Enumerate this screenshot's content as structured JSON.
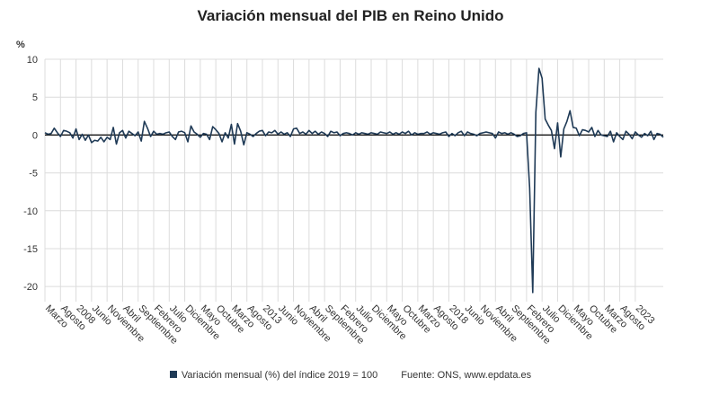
{
  "header": {
    "title": "Variación mensual del PIB en Reino Unido",
    "unit": "%"
  },
  "legend": {
    "label": "Variación mensual (%) del índice 2019 = 100",
    "source": "Fuente: ONS, www.epdata.es"
  },
  "colors": {
    "line": "#1f3a56",
    "grid": "#dcdcdc",
    "zero": "#000000",
    "axis_text": "#333333"
  },
  "chart_data": {
    "type": "line",
    "title": "Variación mensual del PIB en Reino Unido",
    "ylabel": "%",
    "ylim": [
      -22,
      10
    ],
    "yticks": [
      10,
      5,
      0,
      -5,
      -10,
      -15,
      -20
    ],
    "grid": true,
    "legend_position": "bottom",
    "x_start": "2007-03",
    "x_end": "2023-10",
    "tick_labels": [
      {
        "date": "2007-03",
        "label": "Marzo"
      },
      {
        "date": "2007-08",
        "label": "Agosto"
      },
      {
        "date": "2008-01",
        "label": "2008"
      },
      {
        "date": "2008-06",
        "label": "Junio"
      },
      {
        "date": "2008-11",
        "label": "Noviembre"
      },
      {
        "date": "2009-04",
        "label": "Abril"
      },
      {
        "date": "2009-09",
        "label": "Septiembre"
      },
      {
        "date": "2010-02",
        "label": "Febrero"
      },
      {
        "date": "2010-07",
        "label": "Julio"
      },
      {
        "date": "2010-12",
        "label": "Diciembre"
      },
      {
        "date": "2011-05",
        "label": "Mayo"
      },
      {
        "date": "2011-10",
        "label": "Octubre"
      },
      {
        "date": "2012-03",
        "label": "Marzo"
      },
      {
        "date": "2012-08",
        "label": "Agosto"
      },
      {
        "date": "2013-01",
        "label": "2013"
      },
      {
        "date": "2013-06",
        "label": "Junio"
      },
      {
        "date": "2013-11",
        "label": "Noviembre"
      },
      {
        "date": "2014-04",
        "label": "Abril"
      },
      {
        "date": "2014-09",
        "label": "Septiembre"
      },
      {
        "date": "2015-02",
        "label": "Febrero"
      },
      {
        "date": "2015-07",
        "label": "Julio"
      },
      {
        "date": "2015-12",
        "label": "Diciembre"
      },
      {
        "date": "2016-05",
        "label": "Mayo"
      },
      {
        "date": "2016-10",
        "label": "Octubre"
      },
      {
        "date": "2017-03",
        "label": "Marzo"
      },
      {
        "date": "2017-08",
        "label": "Agosto"
      },
      {
        "date": "2018-01",
        "label": "2018"
      },
      {
        "date": "2018-06",
        "label": "Junio"
      },
      {
        "date": "2018-11",
        "label": "Noviembre"
      },
      {
        "date": "2019-04",
        "label": "Abril"
      },
      {
        "date": "2019-09",
        "label": "Septiembre"
      },
      {
        "date": "2020-02",
        "label": "Febrero"
      },
      {
        "date": "2020-07",
        "label": "Julio"
      },
      {
        "date": "2020-12",
        "label": "Diciembre"
      },
      {
        "date": "2021-05",
        "label": "Mayo"
      },
      {
        "date": "2021-10",
        "label": "Octubre"
      },
      {
        "date": "2022-03",
        "label": "Marzo"
      },
      {
        "date": "2022-08",
        "label": "Agosto"
      },
      {
        "date": "2023-01",
        "label": "2023"
      }
    ],
    "series": [
      {
        "name": "Variación mensual (%) del índice 2019 = 100",
        "points": [
          [
            "2007-03",
            0.3
          ],
          [
            "2007-04",
            0.1
          ],
          [
            "2007-05",
            0.2
          ],
          [
            "2007-06",
            0.9
          ],
          [
            "2007-07",
            0.3
          ],
          [
            "2007-08",
            -0.2
          ],
          [
            "2007-09",
            0.6
          ],
          [
            "2007-10",
            0.5
          ],
          [
            "2007-11",
            0.3
          ],
          [
            "2007-12",
            -0.4
          ],
          [
            "2008-01",
            0.8
          ],
          [
            "2008-02",
            -0.6
          ],
          [
            "2008-03",
            0.1
          ],
          [
            "2008-04",
            -0.7
          ],
          [
            "2008-05",
            0.0
          ],
          [
            "2008-06",
            -1.0
          ],
          [
            "2008-07",
            -0.7
          ],
          [
            "2008-08",
            -0.8
          ],
          [
            "2008-09",
            -0.3
          ],
          [
            "2008-10",
            -0.9
          ],
          [
            "2008-11",
            -0.3
          ],
          [
            "2008-12",
            -0.6
          ],
          [
            "2009-01",
            1.0
          ],
          [
            "2009-02",
            -1.2
          ],
          [
            "2009-03",
            0.3
          ],
          [
            "2009-04",
            0.6
          ],
          [
            "2009-05",
            -0.4
          ],
          [
            "2009-06",
            0.5
          ],
          [
            "2009-07",
            0.2
          ],
          [
            "2009-08",
            -0.1
          ],
          [
            "2009-09",
            0.4
          ],
          [
            "2009-10",
            -0.8
          ],
          [
            "2009-11",
            1.8
          ],
          [
            "2009-12",
            0.9
          ],
          [
            "2010-01",
            -0.2
          ],
          [
            "2010-02",
            0.5
          ],
          [
            "2010-03",
            0.1
          ],
          [
            "2010-04",
            0.2
          ],
          [
            "2010-05",
            0.1
          ],
          [
            "2010-06",
            0.3
          ],
          [
            "2010-07",
            0.4
          ],
          [
            "2010-08",
            -0.2
          ],
          [
            "2010-09",
            -0.6
          ],
          [
            "2010-10",
            0.4
          ],
          [
            "2010-11",
            0.5
          ],
          [
            "2010-12",
            0.3
          ],
          [
            "2011-01",
            -0.9
          ],
          [
            "2011-02",
            1.2
          ],
          [
            "2011-03",
            0.4
          ],
          [
            "2011-04",
            0.1
          ],
          [
            "2011-05",
            -0.3
          ],
          [
            "2011-06",
            0.2
          ],
          [
            "2011-07",
            0.1
          ],
          [
            "2011-08",
            -0.6
          ],
          [
            "2011-09",
            1.1
          ],
          [
            "2011-10",
            0.7
          ],
          [
            "2011-11",
            0.2
          ],
          [
            "2011-12",
            -0.9
          ],
          [
            "2012-01",
            0.3
          ],
          [
            "2012-02",
            -0.4
          ],
          [
            "2012-03",
            1.4
          ],
          [
            "2012-04",
            -1.2
          ],
          [
            "2012-05",
            1.5
          ],
          [
            "2012-06",
            0.5
          ],
          [
            "2012-07",
            -1.3
          ],
          [
            "2012-08",
            0.3
          ],
          [
            "2012-09",
            0.1
          ],
          [
            "2012-10",
            -0.2
          ],
          [
            "2012-11",
            0.2
          ],
          [
            "2012-12",
            0.5
          ],
          [
            "2013-01",
            0.6
          ],
          [
            "2013-02",
            -0.1
          ],
          [
            "2013-03",
            0.4
          ],
          [
            "2013-04",
            0.3
          ],
          [
            "2013-05",
            0.6
          ],
          [
            "2013-06",
            0.1
          ],
          [
            "2013-07",
            0.4
          ],
          [
            "2013-08",
            0.1
          ],
          [
            "2013-09",
            0.3
          ],
          [
            "2013-10",
            -0.2
          ],
          [
            "2013-11",
            0.8
          ],
          [
            "2013-12",
            0.9
          ],
          [
            "2014-01",
            0.2
          ],
          [
            "2014-02",
            0.4
          ],
          [
            "2014-03",
            0.1
          ],
          [
            "2014-04",
            0.6
          ],
          [
            "2014-05",
            0.2
          ],
          [
            "2014-06",
            0.5
          ],
          [
            "2014-07",
            0.1
          ],
          [
            "2014-08",
            0.4
          ],
          [
            "2014-09",
            0.2
          ],
          [
            "2014-10",
            -0.2
          ],
          [
            "2014-11",
            0.5
          ],
          [
            "2014-12",
            0.3
          ],
          [
            "2015-01",
            0.4
          ],
          [
            "2015-02",
            -0.1
          ],
          [
            "2015-03",
            0.2
          ],
          [
            "2015-04",
            0.3
          ],
          [
            "2015-05",
            0.2
          ],
          [
            "2015-06",
            0.0
          ],
          [
            "2015-07",
            0.3
          ],
          [
            "2015-08",
            0.1
          ],
          [
            "2015-09",
            0.3
          ],
          [
            "2015-10",
            0.2
          ],
          [
            "2015-11",
            0.1
          ],
          [
            "2015-12",
            0.3
          ],
          [
            "2016-01",
            0.2
          ],
          [
            "2016-02",
            0.1
          ],
          [
            "2016-03",
            0.4
          ],
          [
            "2016-04",
            0.3
          ],
          [
            "2016-05",
            0.2
          ],
          [
            "2016-06",
            0.4
          ],
          [
            "2016-07",
            0.1
          ],
          [
            "2016-08",
            0.3
          ],
          [
            "2016-09",
            0.1
          ],
          [
            "2016-10",
            0.4
          ],
          [
            "2016-11",
            0.2
          ],
          [
            "2016-12",
            0.5
          ],
          [
            "2017-01",
            0.0
          ],
          [
            "2017-02",
            0.3
          ],
          [
            "2017-03",
            0.1
          ],
          [
            "2017-04",
            0.2
          ],
          [
            "2017-05",
            0.2
          ],
          [
            "2017-06",
            0.4
          ],
          [
            "2017-07",
            0.1
          ],
          [
            "2017-08",
            0.3
          ],
          [
            "2017-09",
            0.2
          ],
          [
            "2017-10",
            0.1
          ],
          [
            "2017-11",
            0.3
          ],
          [
            "2017-12",
            0.4
          ],
          [
            "2018-01",
            -0.2
          ],
          [
            "2018-02",
            0.2
          ],
          [
            "2018-03",
            -0.1
          ],
          [
            "2018-04",
            0.3
          ],
          [
            "2018-05",
            0.5
          ],
          [
            "2018-06",
            -0.1
          ],
          [
            "2018-07",
            0.4
          ],
          [
            "2018-08",
            0.2
          ],
          [
            "2018-09",
            0.1
          ],
          [
            "2018-10",
            -0.1
          ],
          [
            "2018-11",
            0.2
          ],
          [
            "2018-12",
            0.3
          ],
          [
            "2019-01",
            0.4
          ],
          [
            "2019-02",
            0.3
          ],
          [
            "2019-03",
            0.2
          ],
          [
            "2019-04",
            -0.4
          ],
          [
            "2019-05",
            0.4
          ],
          [
            "2019-06",
            0.2
          ],
          [
            "2019-07",
            0.3
          ],
          [
            "2019-08",
            0.1
          ],
          [
            "2019-09",
            0.3
          ],
          [
            "2019-10",
            0.1
          ],
          [
            "2019-11",
            -0.2
          ],
          [
            "2019-12",
            -0.1
          ],
          [
            "2020-01",
            0.2
          ],
          [
            "2020-02",
            0.3
          ],
          [
            "2020-03",
            -7.0
          ],
          [
            "2020-04",
            -20.8
          ],
          [
            "2020-05",
            3.0
          ],
          [
            "2020-06",
            8.8
          ],
          [
            "2020-07",
            7.5
          ],
          [
            "2020-08",
            2.1
          ],
          [
            "2020-09",
            1.3
          ],
          [
            "2020-10",
            0.6
          ],
          [
            "2020-11",
            -1.8
          ],
          [
            "2020-12",
            1.6
          ],
          [
            "2021-01",
            -2.9
          ],
          [
            "2021-02",
            0.8
          ],
          [
            "2021-03",
            1.8
          ],
          [
            "2021-04",
            3.2
          ],
          [
            "2021-05",
            1.0
          ],
          [
            "2021-06",
            0.9
          ],
          [
            "2021-07",
            -0.1
          ],
          [
            "2021-08",
            0.7
          ],
          [
            "2021-09",
            0.6
          ],
          [
            "2021-10",
            0.4
          ],
          [
            "2021-11",
            1.0
          ],
          [
            "2021-12",
            -0.2
          ],
          [
            "2022-01",
            0.6
          ],
          [
            "2022-02",
            0.0
          ],
          [
            "2022-03",
            -0.1
          ],
          [
            "2022-04",
            -0.2
          ],
          [
            "2022-05",
            0.5
          ],
          [
            "2022-06",
            -0.9
          ],
          [
            "2022-07",
            0.3
          ],
          [
            "2022-08",
            -0.2
          ],
          [
            "2022-09",
            -0.6
          ],
          [
            "2022-10",
            0.5
          ],
          [
            "2022-11",
            0.1
          ],
          [
            "2022-12",
            -0.5
          ],
          [
            "2023-01",
            0.4
          ],
          [
            "2023-02",
            0.0
          ],
          [
            "2023-03",
            -0.3
          ],
          [
            "2023-04",
            0.2
          ],
          [
            "2023-05",
            -0.1
          ],
          [
            "2023-06",
            0.5
          ],
          [
            "2023-07",
            -0.6
          ],
          [
            "2023-08",
            0.2
          ],
          [
            "2023-09",
            0.1
          ],
          [
            "2023-10",
            -0.3
          ]
        ]
      }
    ]
  }
}
